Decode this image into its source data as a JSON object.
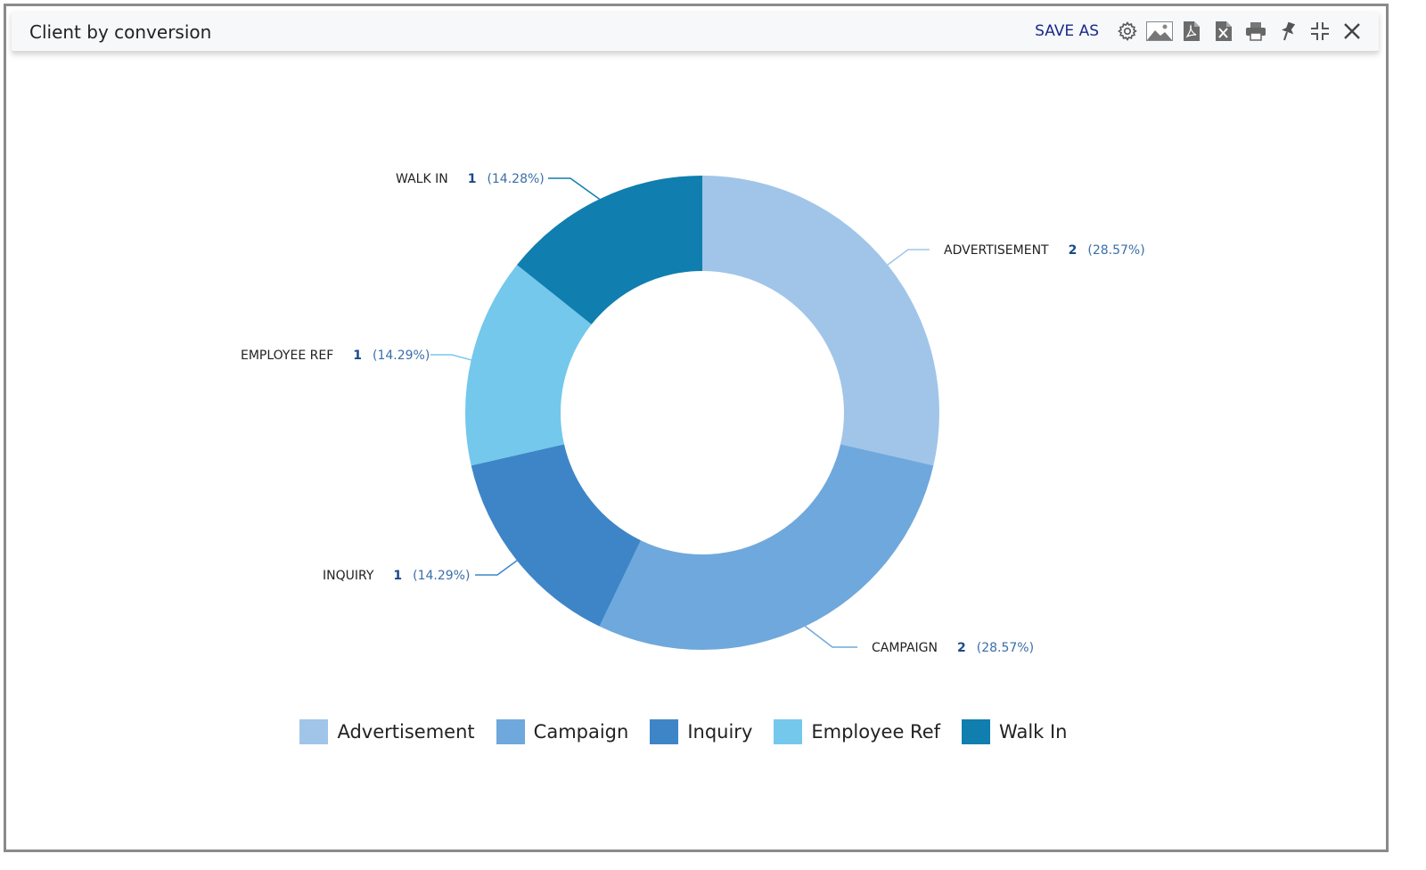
{
  "window": {
    "title": "Client by conversion",
    "toolbar": {
      "save_as_label": "SAVE AS",
      "icons": [
        "gear-icon",
        "image-icon",
        "pdf-icon",
        "excel-icon",
        "print-icon",
        "pin-icon",
        "collapse-icon",
        "close-icon"
      ]
    }
  },
  "chart_data": {
    "type": "pie",
    "variant": "donut",
    "title": "",
    "categories": [
      "Advertisement",
      "Campaign",
      "Inquiry",
      "Employee Ref",
      "Walk In"
    ],
    "callout_names": [
      "ADVERTISEMENT",
      "CAMPAIGN",
      "INQUIRY",
      "EMPLOYEE REF",
      "WALK IN"
    ],
    "values": [
      2,
      2,
      1,
      1,
      1
    ],
    "percent_labels": [
      "(28.57%)",
      "(28.57%)",
      "(14.29%)",
      "(14.29%)",
      "(14.28%)"
    ],
    "colors": [
      "#a0c5e8",
      "#6fa8dc",
      "#3e85c7",
      "#73c8ec",
      "#107eae"
    ],
    "legend_position": "bottom"
  }
}
